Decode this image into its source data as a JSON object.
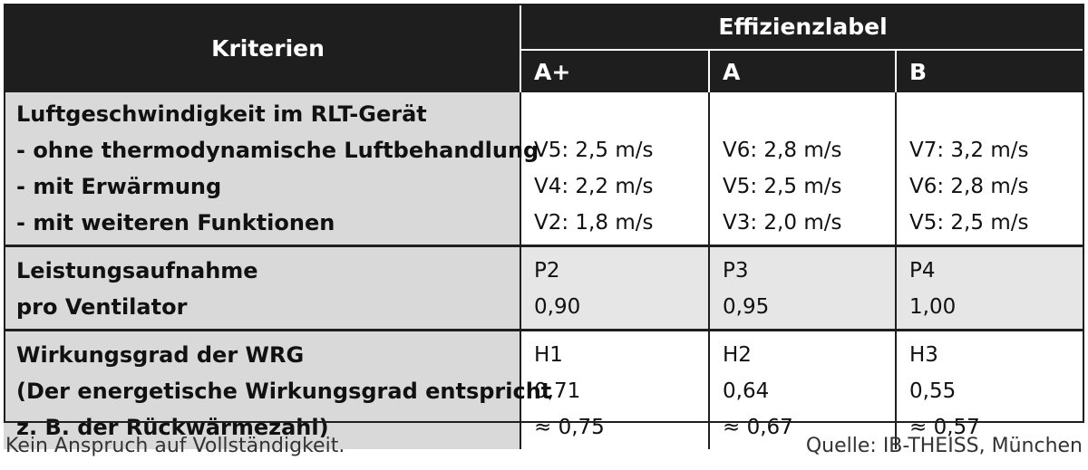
{
  "header": {
    "criteria_label": "Kriterien",
    "group_label": "Effizienzlabel",
    "columns": [
      "A+",
      "A",
      "B"
    ]
  },
  "rows": [
    {
      "criteria": [
        "Luftgeschwindigkeit im RLT-Gerät",
        "- ohne thermodynamische Luftbehandlung",
        "- mit Erwärmung",
        "- mit weiteren Funktionen"
      ],
      "values": [
        [
          "",
          "V5: 2,5 m/s",
          "V4: 2,2 m/s",
          "V2: 1,8 m/s"
        ],
        [
          "",
          "V6: 2,8 m/s",
          "V5: 2,5 m/s",
          "V3: 2,0 m/s"
        ],
        [
          "",
          "V7: 3,2 m/s",
          "V6: 2,8 m/s",
          "V5: 2,5 m/s"
        ]
      ]
    },
    {
      "criteria": [
        "Leistungsaufnahme",
        "pro Ventilator"
      ],
      "values": [
        [
          "P2",
          "0,90"
        ],
        [
          "P3",
          "0,95"
        ],
        [
          "P4",
          "1,00"
        ]
      ]
    },
    {
      "criteria": [
        "Wirkungsgrad der WRG",
        "(Der energetische Wirkungsgrad entspricht",
        "z. B. der Rückwärmezahl)"
      ],
      "values": [
        [
          "H1",
          "0,71",
          "≈ 0,75"
        ],
        [
          "H2",
          "0,64",
          "≈ 0,67"
        ],
        [
          "H3",
          "0,55",
          "≈ 0,57"
        ]
      ]
    }
  ],
  "footer": {
    "note": "Kein Anspruch auf Vollständigkeit.",
    "source": "Quelle: IB-THEISS, München"
  }
}
